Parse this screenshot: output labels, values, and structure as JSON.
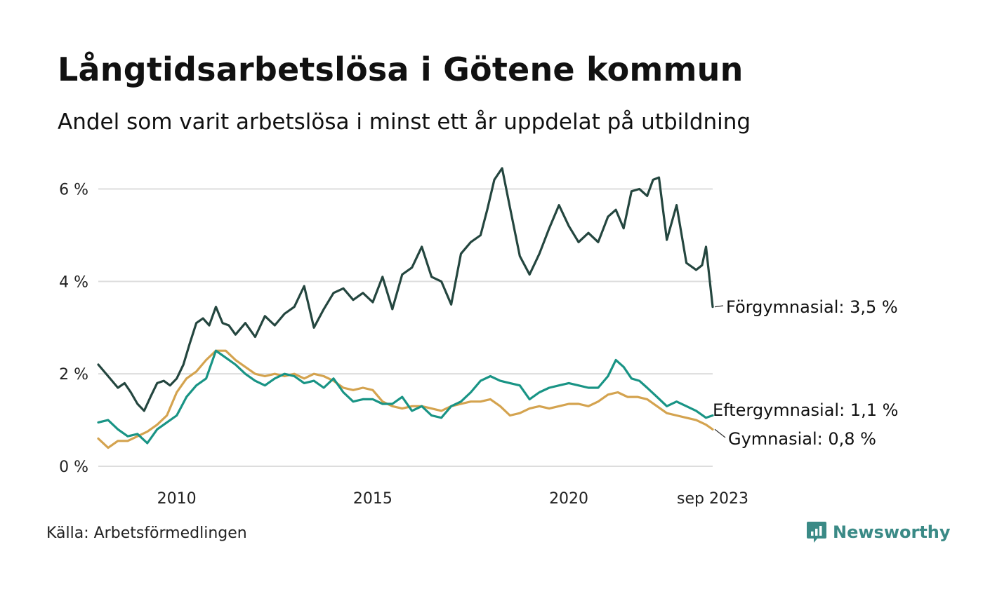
{
  "header": {
    "title": "Långtidsarbetslösa i Götene kommun",
    "subtitle": "Andel som varit arbetslösa i minst ett år uppdelat på utbildning"
  },
  "footer": {
    "source": "Källa: Arbetsförmedlingen",
    "brand": "Newsworthy"
  },
  "chart_data": {
    "type": "line",
    "title": "Långtidsarbetslösa i Götene kommun",
    "subtitle": "Andel som varit arbetslösa i minst ett år uppdelat på utbildning",
    "x_range": [
      2008.0,
      2023.67
    ],
    "ylim": [
      0,
      6.6
    ],
    "y_ticks": [
      0,
      2,
      4,
      6
    ],
    "y_tick_labels": [
      "0 %",
      "2 %",
      "4 %",
      "6 %"
    ],
    "x_ticks": [
      2010,
      2015,
      2020,
      2023.67
    ],
    "x_tick_labels": [
      "2010",
      "2015",
      "2020",
      "sep 2023"
    ],
    "grid": true,
    "legend": "end-labels-right",
    "series": [
      {
        "name": "Förgymnasial",
        "label": "Förgymnasial: 3,5 %",
        "color": "#24463f",
        "x": [
          2008.0,
          2008.25,
          2008.5,
          2008.67,
          2008.83,
          2009.0,
          2009.17,
          2009.33,
          2009.5,
          2009.67,
          2009.83,
          2010.0,
          2010.17,
          2010.33,
          2010.5,
          2010.67,
          2010.83,
          2011.0,
          2011.17,
          2011.33,
          2011.5,
          2011.75,
          2012.0,
          2012.25,
          2012.5,
          2012.75,
          2013.0,
          2013.25,
          2013.5,
          2013.75,
          2014.0,
          2014.25,
          2014.5,
          2014.75,
          2015.0,
          2015.25,
          2015.5,
          2015.75,
          2016.0,
          2016.25,
          2016.5,
          2016.75,
          2017.0,
          2017.25,
          2017.5,
          2017.75,
          2017.92,
          2018.1,
          2018.3,
          2018.5,
          2018.75,
          2019.0,
          2019.25,
          2019.5,
          2019.75,
          2020.0,
          2020.25,
          2020.5,
          2020.75,
          2021.0,
          2021.2,
          2021.4,
          2021.6,
          2021.8,
          2022.0,
          2022.15,
          2022.3,
          2022.5,
          2022.75,
          2023.0,
          2023.25,
          2023.4,
          2023.5,
          2023.67
        ],
        "values": [
          2.2,
          1.95,
          1.7,
          1.8,
          1.6,
          1.35,
          1.2,
          1.5,
          1.8,
          1.85,
          1.75,
          1.9,
          2.2,
          2.65,
          3.1,
          3.2,
          3.05,
          3.45,
          3.1,
          3.05,
          2.85,
          3.1,
          2.8,
          3.25,
          3.05,
          3.3,
          3.45,
          3.9,
          3.0,
          3.4,
          3.75,
          3.85,
          3.6,
          3.75,
          3.55,
          4.1,
          3.4,
          4.15,
          4.3,
          4.75,
          4.1,
          4.0,
          3.5,
          4.6,
          4.85,
          5.0,
          5.55,
          6.2,
          6.45,
          5.6,
          4.55,
          4.15,
          4.6,
          5.15,
          5.65,
          5.2,
          4.85,
          5.05,
          4.85,
          5.4,
          5.55,
          5.15,
          5.95,
          6.0,
          5.85,
          6.2,
          6.25,
          4.9,
          5.65,
          4.4,
          4.25,
          4.35,
          4.75,
          3.45
        ]
      },
      {
        "name": "Eftergymnasial",
        "label": "Eftergymnasial: 1,1 %",
        "color": "#199485",
        "x": [
          2008.0,
          2008.25,
          2008.5,
          2008.75,
          2009.0,
          2009.25,
          2009.5,
          2009.75,
          2010.0,
          2010.25,
          2010.5,
          2010.75,
          2011.0,
          2011.25,
          2011.5,
          2011.75,
          2012.0,
          2012.25,
          2012.5,
          2012.75,
          2013.0,
          2013.25,
          2013.5,
          2013.75,
          2014.0,
          2014.25,
          2014.5,
          2014.75,
          2015.0,
          2015.25,
          2015.5,
          2015.75,
          2016.0,
          2016.25,
          2016.5,
          2016.75,
          2017.0,
          2017.25,
          2017.5,
          2017.75,
          2018.0,
          2018.25,
          2018.5,
          2018.75,
          2019.0,
          2019.25,
          2019.5,
          2019.75,
          2020.0,
          2020.25,
          2020.5,
          2020.75,
          2021.0,
          2021.2,
          2021.4,
          2021.6,
          2021.8,
          2022.0,
          2022.25,
          2022.5,
          2022.75,
          2023.0,
          2023.25,
          2023.5,
          2023.67
        ],
        "values": [
          0.95,
          1.0,
          0.8,
          0.65,
          0.7,
          0.5,
          0.8,
          0.95,
          1.1,
          1.5,
          1.75,
          1.9,
          2.5,
          2.35,
          2.2,
          2.0,
          1.85,
          1.75,
          1.9,
          2.0,
          1.95,
          1.8,
          1.85,
          1.7,
          1.9,
          1.6,
          1.4,
          1.45,
          1.45,
          1.35,
          1.35,
          1.5,
          1.2,
          1.3,
          1.1,
          1.05,
          1.3,
          1.4,
          1.6,
          1.85,
          1.95,
          1.85,
          1.8,
          1.75,
          1.45,
          1.6,
          1.7,
          1.75,
          1.8,
          1.75,
          1.7,
          1.7,
          1.95,
          2.3,
          2.15,
          1.9,
          1.85,
          1.7,
          1.5,
          1.3,
          1.4,
          1.3,
          1.2,
          1.05,
          1.1
        ]
      },
      {
        "name": "Gymnasial",
        "label": "Gymnasial: 0,8 %",
        "color": "#d4a34f",
        "x": [
          2008.0,
          2008.25,
          2008.5,
          2008.75,
          2009.0,
          2009.25,
          2009.5,
          2009.75,
          2010.0,
          2010.25,
          2010.5,
          2010.75,
          2011.0,
          2011.25,
          2011.5,
          2011.75,
          2012.0,
          2012.25,
          2012.5,
          2012.75,
          2013.0,
          2013.25,
          2013.5,
          2013.75,
          2014.0,
          2014.25,
          2014.5,
          2014.75,
          2015.0,
          2015.25,
          2015.5,
          2015.75,
          2016.0,
          2016.25,
          2016.5,
          2016.75,
          2017.0,
          2017.25,
          2017.5,
          2017.75,
          2018.0,
          2018.25,
          2018.5,
          2018.75,
          2019.0,
          2019.25,
          2019.5,
          2019.75,
          2020.0,
          2020.25,
          2020.5,
          2020.75,
          2021.0,
          2021.25,
          2021.5,
          2021.75,
          2022.0,
          2022.25,
          2022.5,
          2022.75,
          2023.0,
          2023.25,
          2023.5,
          2023.67
        ],
        "values": [
          0.6,
          0.4,
          0.55,
          0.55,
          0.65,
          0.75,
          0.9,
          1.1,
          1.6,
          1.9,
          2.05,
          2.3,
          2.5,
          2.5,
          2.3,
          2.15,
          2.0,
          1.95,
          2.0,
          1.95,
          2.0,
          1.9,
          2.0,
          1.95,
          1.85,
          1.7,
          1.65,
          1.7,
          1.65,
          1.4,
          1.3,
          1.25,
          1.3,
          1.3,
          1.25,
          1.2,
          1.3,
          1.35,
          1.4,
          1.4,
          1.45,
          1.3,
          1.1,
          1.15,
          1.25,
          1.3,
          1.25,
          1.3,
          1.35,
          1.35,
          1.3,
          1.4,
          1.55,
          1.6,
          1.5,
          1.5,
          1.45,
          1.3,
          1.15,
          1.1,
          1.05,
          1.0,
          0.9,
          0.8
        ]
      }
    ]
  }
}
